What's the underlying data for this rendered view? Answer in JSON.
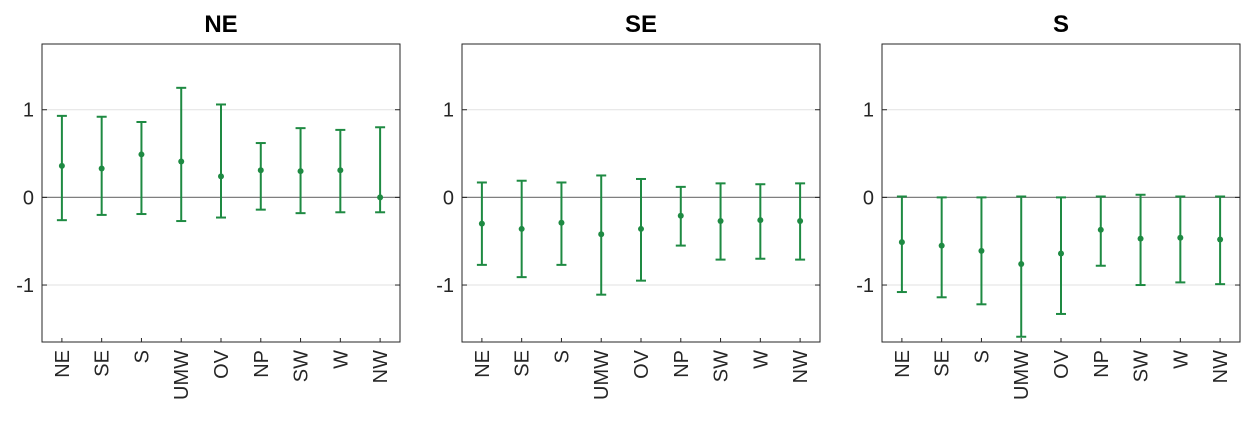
{
  "colors": {
    "series": "#1e8a42",
    "zero_line": "#7f7f7f",
    "grid": "#e2e2e2",
    "axis": "#262626"
  },
  "chart_data": [
    {
      "type": "errorbar",
      "title": "NE",
      "categories": [
        "NE",
        "SE",
        "S",
        "UMW",
        "OV",
        "NP",
        "SW",
        "W",
        "NW"
      ],
      "values": [
        0.36,
        0.33,
        0.49,
        0.41,
        0.24,
        0.31,
        0.3,
        0.31,
        0.0
      ],
      "lower": [
        -0.26,
        -0.2,
        -0.19,
        -0.27,
        -0.23,
        -0.14,
        -0.18,
        -0.17,
        -0.17
      ],
      "upper": [
        0.93,
        0.92,
        0.86,
        1.25,
        1.06,
        0.62,
        0.79,
        0.77,
        0.8
      ],
      "ylim": [
        -1.65,
        1.75
      ],
      "yticks": [
        -1,
        0,
        1
      ],
      "ytick_labels": [
        "-1",
        "0",
        "1"
      ],
      "grid": true
    },
    {
      "type": "errorbar",
      "title": "SE",
      "categories": [
        "NE",
        "SE",
        "S",
        "UMW",
        "OV",
        "NP",
        "SW",
        "W",
        "NW"
      ],
      "values": [
        -0.3,
        -0.36,
        -0.29,
        -0.42,
        -0.36,
        -0.21,
        -0.27,
        -0.26,
        -0.27
      ],
      "lower": [
        -0.77,
        -0.91,
        -0.77,
        -1.11,
        -0.95,
        -0.55,
        -0.71,
        -0.7,
        -0.71
      ],
      "upper": [
        0.17,
        0.19,
        0.17,
        0.25,
        0.21,
        0.12,
        0.16,
        0.15,
        0.16
      ],
      "ylim": [
        -1.65,
        1.75
      ],
      "yticks": [
        -1,
        0,
        1
      ],
      "ytick_labels": [
        "-1",
        "0",
        "1"
      ],
      "grid": true
    },
    {
      "type": "errorbar",
      "title": "S",
      "categories": [
        "NE",
        "SE",
        "S",
        "UMW",
        "OV",
        "NP",
        "SW",
        "W",
        "NW"
      ],
      "values": [
        -0.51,
        -0.55,
        -0.61,
        -0.76,
        -0.64,
        -0.37,
        -0.47,
        -0.46,
        -0.48
      ],
      "lower": [
        -1.08,
        -1.14,
        -1.22,
        -1.59,
        -1.33,
        -0.78,
        -1.0,
        -0.97,
        -0.99
      ],
      "upper": [
        0.01,
        0.0,
        0.0,
        0.01,
        0.0,
        0.01,
        0.03,
        0.01,
        0.01
      ],
      "ylim": [
        -1.65,
        1.75
      ],
      "yticks": [
        -1,
        0,
        1
      ],
      "ytick_labels": [
        "-1",
        "0",
        "1"
      ],
      "grid": true
    }
  ]
}
